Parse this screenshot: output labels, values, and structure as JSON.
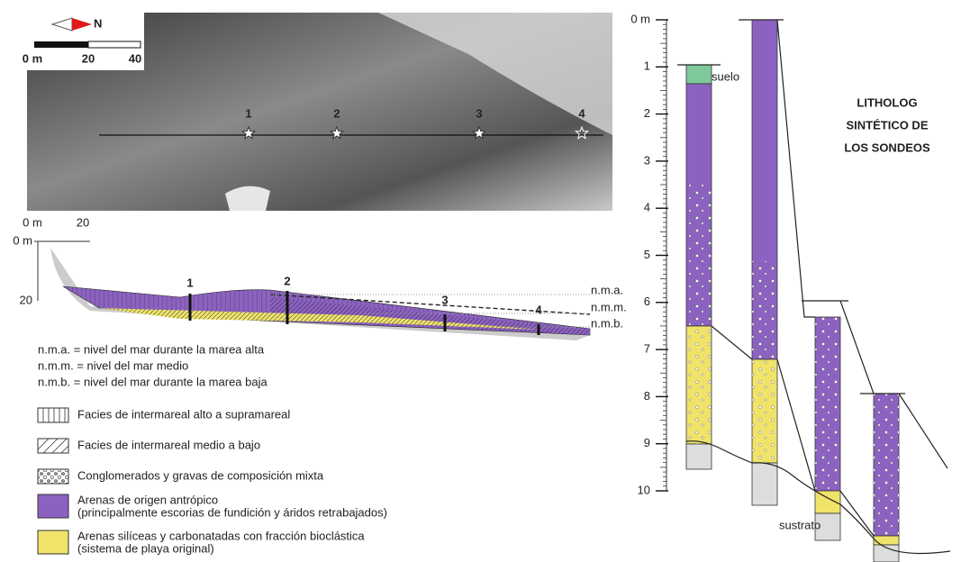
{
  "photo": {
    "north": "N",
    "scale_ticks": [
      "0 m",
      "20",
      "40"
    ],
    "stations": [
      "1",
      "2",
      "3",
      "4"
    ]
  },
  "section": {
    "scale_x": [
      "0 m",
      "20"
    ],
    "scale_y": [
      "0 m",
      "20"
    ],
    "wells": [
      "1",
      "2",
      "3",
      "4"
    ],
    "levels": [
      "n.m.a.",
      "n.m.m.",
      "n.m.b."
    ]
  },
  "definitions": [
    "n.m.a. = nivel del mar durante la marea alta",
    "n.m.m. = nivel del mar medio",
    "n.m.b. = nivel del mar durante la marea baja"
  ],
  "legend": [
    {
      "lines": [
        "Facies de intermareal alto a supramareal"
      ]
    },
    {
      "lines": [
        "Facies de intermareal medio a bajo"
      ]
    },
    {
      "lines": [
        "Conglomerados y gravas de composición mixta"
      ]
    },
    {
      "lines": [
        "Arenas de origen antrópico",
        "(principalmente escorias de fundición y áridos retrabajados)"
      ]
    },
    {
      "lines": [
        "Arenas silíceas y carbonatadas con fracción bioclástica",
        "(sistema de playa original)"
      ]
    }
  ],
  "log": {
    "title": [
      "LITHOLOG",
      "SINTÉTICO DE",
      "LOS SONDEOS"
    ],
    "depth_ticks": [
      {
        "value": 0,
        "label": "0 m"
      },
      1,
      2,
      3,
      4,
      5,
      6,
      7,
      8,
      9,
      10
    ],
    "top_soil": "suelo",
    "substrate": "sustrato"
  }
}
